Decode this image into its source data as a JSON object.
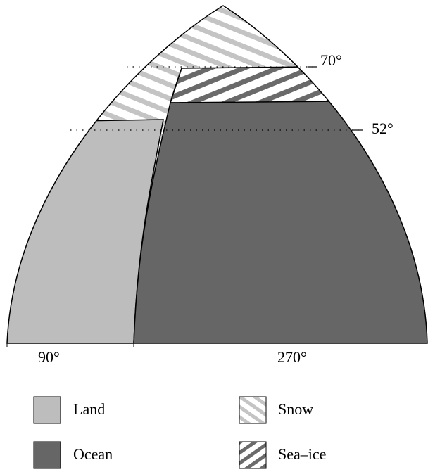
{
  "latitudes": [
    {
      "label": "70°"
    },
    {
      "label": "52°"
    }
  ],
  "longitudes": [
    {
      "label": "90°"
    },
    {
      "label": "270°"
    }
  ],
  "legend": [
    {
      "label": "Land"
    },
    {
      "label": "Snow"
    },
    {
      "label": "Ocean"
    },
    {
      "label": "Sea–ice"
    }
  ]
}
